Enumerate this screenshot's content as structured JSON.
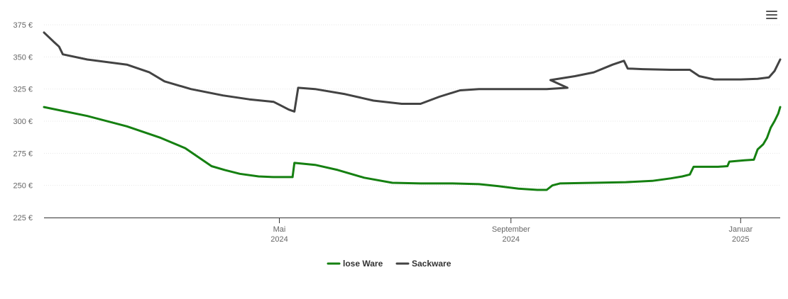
{
  "menu": {
    "icon": "hamburger-menu-icon"
  },
  "chart_data": {
    "type": "line",
    "title": "",
    "xlabel": "",
    "ylabel": "",
    "ylim": [
      225,
      375
    ],
    "yticks": [
      225,
      250,
      275,
      300,
      325,
      350,
      375
    ],
    "ytick_labels": [
      "225 €",
      "250 €",
      "275 €",
      "300 €",
      "325 €",
      "350 €",
      "375 €"
    ],
    "xlim": [
      "2023-12-28",
      "2025-01-22"
    ],
    "xticks": [
      {
        "date": "2024-05-01",
        "label": "Mai",
        "year": "2024"
      },
      {
        "date": "2024-09-01",
        "label": "September",
        "year": "2024"
      },
      {
        "date": "2025-01-01",
        "label": "Januar",
        "year": "2025"
      }
    ],
    "grid": true,
    "legend": "bottom-center",
    "series": [
      {
        "name": "lose Ware",
        "color": "#158011",
        "points": [
          [
            "2023-12-28",
            311
          ],
          [
            "2024-01-20",
            304
          ],
          [
            "2024-02-10",
            296
          ],
          [
            "2024-02-28",
            287
          ],
          [
            "2024-03-12",
            279
          ],
          [
            "2024-03-20",
            271
          ],
          [
            "2024-03-26",
            265
          ],
          [
            "2024-04-02",
            262
          ],
          [
            "2024-04-10",
            259
          ],
          [
            "2024-04-20",
            257
          ],
          [
            "2024-04-28",
            256.5
          ],
          [
            "2024-05-05",
            256.5
          ],
          [
            "2024-05-08",
            256.5
          ],
          [
            "2024-05-09",
            267.5
          ],
          [
            "2024-05-20",
            266
          ],
          [
            "2024-06-01",
            262
          ],
          [
            "2024-06-15",
            256
          ],
          [
            "2024-06-30",
            252
          ],
          [
            "2024-07-15",
            251.5
          ],
          [
            "2024-08-01",
            251.5
          ],
          [
            "2024-08-15",
            251
          ],
          [
            "2024-08-25",
            249.5
          ],
          [
            "2024-09-05",
            247.5
          ],
          [
            "2024-09-15",
            246.5
          ],
          [
            "2024-09-20",
            246.5
          ],
          [
            "2024-09-23",
            250
          ],
          [
            "2024-09-27",
            251.5
          ],
          [
            "2024-10-15",
            252
          ],
          [
            "2024-11-01",
            252.5
          ],
          [
            "2024-11-15",
            253.5
          ],
          [
            "2024-11-25",
            255.5
          ],
          [
            "2024-12-01",
            257
          ],
          [
            "2024-12-05",
            258.5
          ],
          [
            "2024-12-07",
            264.5
          ],
          [
            "2024-12-20",
            264.5
          ],
          [
            "2024-12-25",
            265
          ],
          [
            "2024-12-26",
            268.5
          ],
          [
            "2025-01-03",
            269.5
          ],
          [
            "2025-01-08",
            270
          ],
          [
            "2025-01-10",
            278
          ],
          [
            "2025-01-13",
            282
          ],
          [
            "2025-01-15",
            287
          ],
          [
            "2025-01-17",
            295
          ],
          [
            "2025-01-19",
            300
          ],
          [
            "2025-01-21",
            306
          ],
          [
            "2025-01-22",
            311
          ]
        ]
      },
      {
        "name": "Sackware",
        "color": "#434343",
        "points": [
          [
            "2023-12-28",
            369
          ],
          [
            "2024-01-02",
            362
          ],
          [
            "2024-01-05",
            358
          ],
          [
            "2024-01-07",
            352
          ],
          [
            "2024-01-20",
            348
          ],
          [
            "2024-02-10",
            344
          ],
          [
            "2024-02-22",
            338
          ],
          [
            "2024-03-01",
            331
          ],
          [
            "2024-03-15",
            325
          ],
          [
            "2024-04-01",
            320
          ],
          [
            "2024-04-15",
            317
          ],
          [
            "2024-04-28",
            315
          ],
          [
            "2024-05-02",
            312
          ],
          [
            "2024-05-06",
            309
          ],
          [
            "2024-05-09",
            307.5
          ],
          [
            "2024-05-11",
            326
          ],
          [
            "2024-05-20",
            325
          ],
          [
            "2024-06-05",
            321
          ],
          [
            "2024-06-20",
            316
          ],
          [
            "2024-07-05",
            313.5
          ],
          [
            "2024-07-15",
            313.5
          ],
          [
            "2024-07-25",
            319
          ],
          [
            "2024-08-05",
            324
          ],
          [
            "2024-08-15",
            325
          ],
          [
            "2024-09-10",
            325
          ],
          [
            "2024-09-10",
            325
          ],
          [
            "2024-09-20",
            325
          ],
          [
            "2024-10-01",
            326
          ],
          [
            "2024-09-22",
            332
          ],
          [
            "2024-10-05",
            335
          ],
          [
            "2024-10-15",
            338
          ],
          [
            "2024-10-25",
            344
          ],
          [
            "2024-10-31",
            347
          ],
          [
            "2024-11-02",
            341
          ],
          [
            "2024-11-10",
            340.5
          ],
          [
            "2024-11-25",
            340
          ],
          [
            "2024-12-05",
            340
          ],
          [
            "2024-12-10",
            335
          ],
          [
            "2024-12-18",
            332.5
          ],
          [
            "2025-01-01",
            332.5
          ],
          [
            "2025-01-10",
            333
          ],
          [
            "2025-01-16",
            334
          ],
          [
            "2025-01-19",
            339
          ],
          [
            "2025-01-22",
            348
          ]
        ]
      }
    ]
  }
}
